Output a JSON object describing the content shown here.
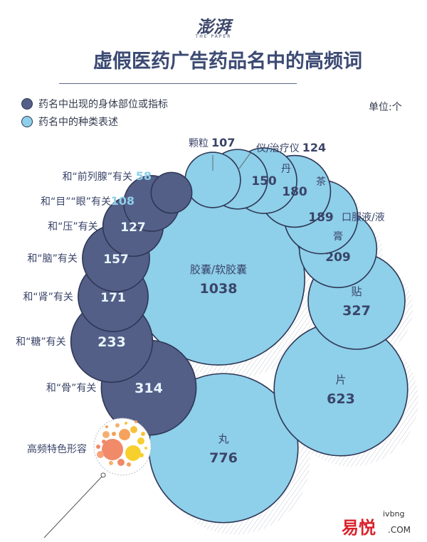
{
  "logo": {
    "name": "澎湃",
    "sub": "THE PAPER"
  },
  "title": "虚假医药广告药品名中的高频词",
  "legend": [
    {
      "label": "药名中出现的身体部位或指标",
      "color": "#545f88"
    },
    {
      "label": "药名中的种类表述",
      "color": "#8ecfe9"
    }
  ],
  "unit": "单位:个",
  "chart_data": {
    "type": "bubble",
    "series": [
      {
        "name": "药名中的种类表述",
        "color": "#8ecfe9",
        "points": [
          {
            "label": "胶囊/软胶囊",
            "value": 1038
          },
          {
            "label": "丸",
            "value": 776
          },
          {
            "label": "片",
            "value": 623
          },
          {
            "label": "贴",
            "value": 327
          },
          {
            "label": "膏",
            "value": 209
          },
          {
            "label": "口服液/液",
            "value": 189
          },
          {
            "label": "茶",
            "value": 180
          },
          {
            "label": "丹",
            "value": 150
          },
          {
            "label": "仪/治疗仪",
            "value": 124
          },
          {
            "label": "颗粒",
            "value": 107
          }
        ]
      },
      {
        "name": "药名中出现的身体部位或指标",
        "color": "#545f88",
        "points": [
          {
            "label": "和“骨”有关",
            "value": 314
          },
          {
            "label": "和“糖”有关",
            "value": 233
          },
          {
            "label": "和“肾”有关",
            "value": 171
          },
          {
            "label": "和“脑”有关",
            "value": 157
          },
          {
            "label": "和“压”有关",
            "value": 127
          },
          {
            "label": "和“目”“眼”有关",
            "value": 108
          },
          {
            "label": "和“前列腺”有关",
            "value": 58
          }
        ]
      }
    ],
    "annotation": "高频特色形容"
  },
  "brand": {
    "name": "易悦",
    "domain": "ivbng",
    "com": ".COM"
  }
}
